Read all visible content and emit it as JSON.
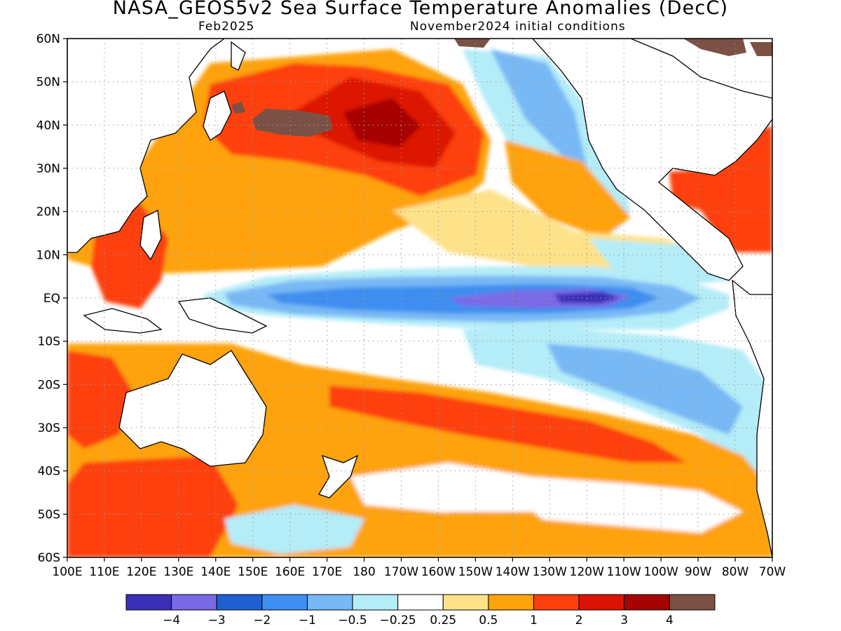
{
  "title": "NASA_GEOS5v2 Sea Surface Temperature Anomalies (DecC)",
  "subtitle_left": "Feb2025",
  "subtitle_right": "November2024 initial conditions",
  "lat_ticks": [
    "60N",
    "50N",
    "40N",
    "30N",
    "20N",
    "10N",
    "EQ",
    "10S",
    "20S",
    "30S",
    "40S",
    "50S",
    "60S"
  ],
  "lon_ticks": [
    "100E",
    "110E",
    "120E",
    "130E",
    "140E",
    "150E",
    "160E",
    "170E",
    "180",
    "170W",
    "160W",
    "150W",
    "140W",
    "130W",
    "120W",
    "110W",
    "100W",
    "90W",
    "80W",
    "70W"
  ],
  "colorbar": {
    "colors": [
      "#3b2fb8",
      "#7a6ae6",
      "#1f5fd1",
      "#3d8ef0",
      "#78b8f5",
      "#b4ecf8",
      "#ffffff",
      "#fde28a",
      "#fea30c",
      "#fd3f0e",
      "#dc1406",
      "#a60404",
      "#7b5145"
    ],
    "labels": [
      "−4",
      "−3",
      "−2",
      "−1",
      "−0.5",
      "−0.25",
      "0.25",
      "0.5",
      "1",
      "2",
      "3",
      "4"
    ]
  },
  "colors": {
    "land": "#ffffff",
    "ocean_base": "#ffffff",
    "no_data": "#7b5145",
    "coast": "#000000",
    "grid": "#9a9a9a"
  }
}
